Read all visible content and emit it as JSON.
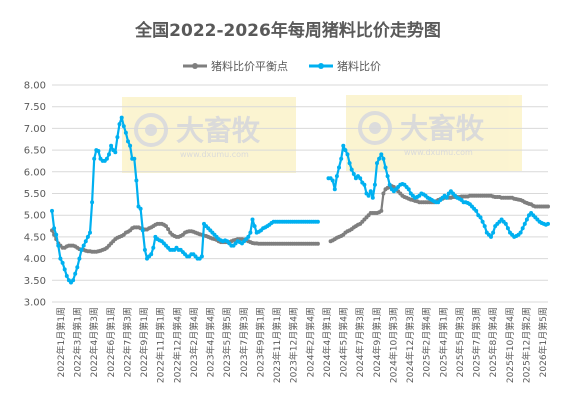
{
  "chart_data": {
    "type": "line",
    "title": "全国2022-2026年每周猪料比价走势图",
    "xlabel": "",
    "ylabel": "",
    "ylim": [
      3.0,
      8.0
    ],
    "yticks": [
      "3.00",
      "3.50",
      "4.00",
      "4.50",
      "5.00",
      "5.50",
      "6.00",
      "6.50",
      "7.00",
      "7.50",
      "8.00"
    ],
    "grid": true,
    "legend_position": "top",
    "watermark_text": "大畜牧",
    "watermark_url": "www.dxumu.com",
    "x_ticks": [
      "2022年1月第1周",
      "2022年3月第1周",
      "2022年4月第3周",
      "2022年6月第1周",
      "2022年7月第3周",
      "2022年9月第1周",
      "2022年11月第1周",
      "2022年12月第4周",
      "2023年2月第4周",
      "2023年4月第4周",
      "2023年5月第5周",
      "2023年7月第3周",
      "2023年9月第1周",
      "2023年11月第1周",
      "2023年12月第4周",
      "2024年2月第4周",
      "2024年4月第1周",
      "2024年5月第4周",
      "2024年7月第3周",
      "2024年9月第1周",
      "2024年10月第3周",
      "2024年12月第3周",
      "2025年2月第4周",
      "2025年4月第1周",
      "2025年5月第3周",
      "2025年7月第3周",
      "2025年8月第4周",
      "2025年10月第4周",
      "2025年12月第2周",
      "2026年1月第5周"
    ],
    "series": [
      {
        "name": "猪料比价平衡点",
        "color": "#7f7f7f",
        "segments": [
          {
            "x": [
              0,
              1,
              2,
              3,
              4,
              5,
              6,
              7,
              8,
              9,
              10,
              11,
              12,
              13,
              14,
              15,
              16,
              17,
              18,
              19,
              20,
              21,
              22,
              23,
              24,
              25,
              26,
              27,
              28,
              29,
              30,
              31,
              32,
              33,
              34,
              35,
              36,
              37,
              38,
              39,
              40,
              41,
              42,
              43,
              44,
              45,
              46,
              47,
              48,
              49,
              50,
              51,
              52,
              53,
              54,
              55,
              56,
              57,
              58,
              59,
              60,
              61,
              62,
              63,
              64,
              65,
              66,
              67,
              68,
              69,
              70,
              71,
              72,
              73,
              74,
              75,
              76,
              77,
              78,
              79,
              80,
              81,
              82,
              83,
              84,
              85,
              86,
              87,
              88,
              89,
              90,
              91,
              92,
              93,
              94,
              95,
              96,
              97,
              98,
              99,
              100,
              101,
              102,
              103,
              104,
              105,
              106,
              107,
              108,
              109,
              110,
              111,
              112,
              113,
              114,
              115,
              116,
              117,
              118,
              119,
              120,
              121,
              122,
              123,
              124,
              125,
              126
            ],
            "y": [
              4.65,
              4.55,
              4.45,
              4.35,
              4.3,
              4.25,
              4.25,
              4.28,
              4.3,
              4.3,
              4.3,
              4.28,
              4.25,
              4.22,
              4.2,
              4.2,
              4.18,
              4.17,
              4.17,
              4.16,
              4.16,
              4.16,
              4.17,
              4.18,
              4.2,
              4.22,
              4.25,
              4.3,
              4.35,
              4.4,
              4.45,
              4.48,
              4.5,
              4.52,
              4.55,
              4.6,
              4.62,
              4.65,
              4.7,
              4.72,
              4.72,
              4.72,
              4.7,
              4.68,
              4.67,
              4.67,
              4.7,
              4.72,
              4.75,
              4.78,
              4.8,
              4.8,
              4.8,
              4.78,
              4.75,
              4.68,
              4.6,
              4.55,
              4.52,
              4.5,
              4.5,
              4.52,
              4.55,
              4.6,
              4.62,
              4.63,
              4.63,
              4.62,
              4.6,
              4.58,
              4.56,
              4.55,
              4.53,
              4.52,
              4.5,
              4.48,
              4.46,
              4.45,
              4.43,
              4.4,
              4.38,
              4.38,
              4.38,
              4.38,
              4.38,
              4.4,
              4.42,
              4.43,
              4.45,
              4.45,
              4.45,
              4.44,
              4.42,
              4.4,
              4.38,
              4.36,
              4.35,
              4.35,
              4.34,
              4.34,
              4.34,
              4.34,
              4.34,
              4.34,
              4.34,
              4.34,
              4.34,
              4.34,
              4.34,
              4.34,
              4.34,
              4.34,
              4.34,
              4.34,
              4.34,
              4.34,
              4.34,
              4.34,
              4.34,
              4.34,
              4.34,
              4.34,
              4.34,
              4.34,
              4.34,
              4.34,
              4.34
            ]
          },
          {
            "x": [
              132,
              133,
              134,
              135,
              136,
              137,
              138,
              139,
              140,
              141,
              142,
              143,
              144,
              145,
              146,
              147,
              148,
              149,
              150,
              151,
              152,
              153,
              154,
              155,
              156,
              157,
              158,
              159,
              160,
              161,
              162,
              163,
              164,
              165,
              166,
              167,
              168,
              169,
              170,
              171,
              172,
              173,
              174,
              175,
              176,
              177,
              178,
              179,
              180,
              181,
              182,
              183,
              184,
              185,
              186,
              187,
              188,
              189,
              190,
              191,
              192,
              193,
              194,
              195,
              196,
              197,
              198,
              199,
              200,
              201,
              202,
              203,
              204,
              205,
              206,
              207,
              208,
              209,
              210,
              211,
              212,
              213,
              214,
              215,
              216,
              217,
              218,
              219,
              220,
              221,
              222,
              223,
              224,
              225,
              226,
              227,
              228,
              229,
              230,
              231,
              232,
              233,
              234,
              235
            ],
            "y": [
              4.4,
              4.42,
              4.45,
              4.48,
              4.5,
              4.52,
              4.55,
              4.6,
              4.63,
              4.65,
              4.68,
              4.72,
              4.75,
              4.78,
              4.8,
              4.85,
              4.9,
              4.95,
              5.0,
              5.05,
              5.05,
              5.05,
              5.05,
              5.07,
              5.1,
              5.5,
              5.6,
              5.63,
              5.65,
              5.67,
              5.65,
              5.6,
              5.55,
              5.5,
              5.45,
              5.42,
              5.4,
              5.38,
              5.36,
              5.35,
              5.33,
              5.32,
              5.3,
              5.3,
              5.3,
              5.3,
              5.3,
              5.3,
              5.3,
              5.3,
              5.32,
              5.35,
              5.37,
              5.38,
              5.4,
              5.4,
              5.4,
              5.4,
              5.42,
              5.42,
              5.42,
              5.42,
              5.43,
              5.43,
              5.43,
              5.43,
              5.45,
              5.45,
              5.45,
              5.45,
              5.45,
              5.45,
              5.45,
              5.45,
              5.45,
              5.45,
              5.45,
              5.43,
              5.42,
              5.42,
              5.42,
              5.4,
              5.4,
              5.4,
              5.4,
              5.4,
              5.4,
              5.38,
              5.37,
              5.36,
              5.35,
              5.33,
              5.3,
              5.28,
              5.26,
              5.25,
              5.22,
              5.2,
              5.2,
              5.2,
              5.2,
              5.2,
              5.2,
              5.2
            ]
          }
        ]
      },
      {
        "name": "猪料比价",
        "color": "#00b0f0",
        "segments": [
          {
            "x": [
              0,
              1,
              2,
              3,
              4,
              5,
              6,
              7,
              8,
              9,
              10,
              11,
              12,
              13,
              14,
              15,
              16,
              17,
              18,
              19,
              20,
              21,
              22,
              23,
              24,
              25,
              26,
              27,
              28,
              29,
              30,
              31,
              32,
              33,
              34,
              35,
              36,
              37,
              38,
              39,
              40,
              41,
              42,
              43,
              44,
              45,
              46,
              47,
              48,
              49,
              50,
              51,
              52,
              53,
              54,
              55,
              56,
              57,
              58,
              59,
              60,
              61,
              62,
              63,
              64,
              65,
              66,
              67,
              68,
              69,
              70,
              71,
              72,
              73,
              74,
              75,
              76,
              77,
              78,
              79,
              80,
              81,
              82,
              83,
              84,
              85,
              86,
              87,
              88,
              89,
              90,
              91,
              92,
              93,
              94,
              95,
              96,
              97,
              98,
              99,
              100,
              101,
              102,
              103,
              104,
              105,
              106,
              107,
              108,
              109,
              110,
              111,
              112,
              113,
              114,
              115,
              116,
              117,
              118,
              119,
              120,
              121,
              122,
              123,
              124,
              125,
              126
            ],
            "y": [
              5.1,
              4.7,
              4.55,
              4.3,
              4.0,
              3.9,
              3.75,
              3.6,
              3.5,
              3.45,
              3.5,
              3.65,
              3.8,
              4.0,
              4.2,
              4.3,
              4.4,
              4.5,
              4.6,
              5.3,
              6.3,
              6.5,
              6.48,
              6.3,
              6.25,
              6.25,
              6.3,
              6.4,
              6.6,
              6.5,
              6.45,
              6.8,
              7.1,
              7.25,
              7.05,
              6.9,
              6.7,
              6.6,
              6.3,
              6.3,
              5.8,
              5.2,
              5.15,
              4.65,
              4.2,
              4.0,
              4.05,
              4.1,
              4.25,
              4.5,
              4.45,
              4.42,
              4.4,
              4.35,
              4.3,
              4.25,
              4.2,
              4.2,
              4.2,
              4.25,
              4.2,
              4.2,
              4.15,
              4.1,
              4.05,
              4.05,
              4.1,
              4.1,
              4.05,
              4.0,
              4.0,
              4.05,
              4.8,
              4.75,
              4.7,
              4.65,
              4.6,
              4.55,
              4.5,
              4.45,
              4.42,
              4.4,
              4.42,
              4.4,
              4.35,
              4.3,
              4.3,
              4.35,
              4.4,
              4.38,
              4.35,
              4.4,
              4.45,
              4.5,
              4.6,
              4.9,
              4.75,
              4.6,
              4.62,
              4.65,
              4.7,
              4.72,
              4.75,
              4.78,
              4.82,
              4.85,
              4.85,
              4.85,
              4.85,
              4.85,
              4.85,
              4.85,
              4.85,
              4.85,
              4.85,
              4.85,
              4.85,
              4.85,
              4.85,
              4.85,
              4.85,
              4.85,
              4.85,
              4.85,
              4.85,
              4.85,
              4.85
            ]
          },
          {
            "x": [
              131,
              132,
              133,
              134,
              135,
              136,
              137,
              138,
              139,
              140,
              141,
              142,
              143,
              144,
              145,
              146,
              147,
              148,
              149,
              150,
              151,
              152,
              153,
              154,
              155,
              156,
              157,
              158,
              159,
              160,
              161,
              162,
              163,
              164,
              165,
              166,
              167,
              168,
              169,
              170,
              171,
              172,
              173,
              174,
              175,
              176,
              177,
              178,
              179,
              180,
              181,
              182,
              183,
              184,
              185,
              186,
              187,
              188,
              189,
              190,
              191,
              192,
              193,
              194,
              195,
              196,
              197,
              198,
              199,
              200,
              201,
              202,
              203,
              204,
              205,
              206,
              207,
              208,
              209,
              210,
              211,
              212,
              213,
              214,
              215,
              216,
              217,
              218,
              219,
              220,
              221,
              222,
              223,
              224,
              225,
              226,
              227,
              228,
              229,
              230,
              231,
              232,
              233,
              234,
              235
            ],
            "y": [
              5.85,
              5.85,
              5.8,
              5.6,
              5.9,
              6.1,
              6.3,
              6.6,
              6.5,
              6.4,
              6.2,
              6.05,
              5.95,
              5.85,
              5.9,
              5.85,
              5.75,
              5.7,
              5.5,
              5.45,
              5.55,
              5.4,
              5.7,
              6.2,
              6.3,
              6.4,
              6.3,
              6.1,
              5.9,
              5.7,
              5.6,
              5.55,
              5.6,
              5.65,
              5.7,
              5.72,
              5.7,
              5.65,
              5.6,
              5.5,
              5.45,
              5.4,
              5.42,
              5.45,
              5.5,
              5.48,
              5.45,
              5.4,
              5.38,
              5.35,
              5.32,
              5.3,
              5.3,
              5.35,
              5.4,
              5.45,
              5.4,
              5.5,
              5.55,
              5.5,
              5.45,
              5.4,
              5.38,
              5.35,
              5.3,
              5.3,
              5.28,
              5.25,
              5.2,
              5.15,
              5.1,
              5.0,
              4.95,
              4.85,
              4.75,
              4.6,
              4.55,
              4.5,
              4.6,
              4.75,
              4.8,
              4.85,
              4.9,
              4.85,
              4.8,
              4.7,
              4.6,
              4.55,
              4.5,
              4.52,
              4.55,
              4.6,
              4.7,
              4.8,
              4.9,
              5.0,
              5.05,
              5.0,
              4.95,
              4.9,
              4.85,
              4.82,
              4.8,
              4.78,
              4.8
            ]
          }
        ]
      }
    ]
  }
}
